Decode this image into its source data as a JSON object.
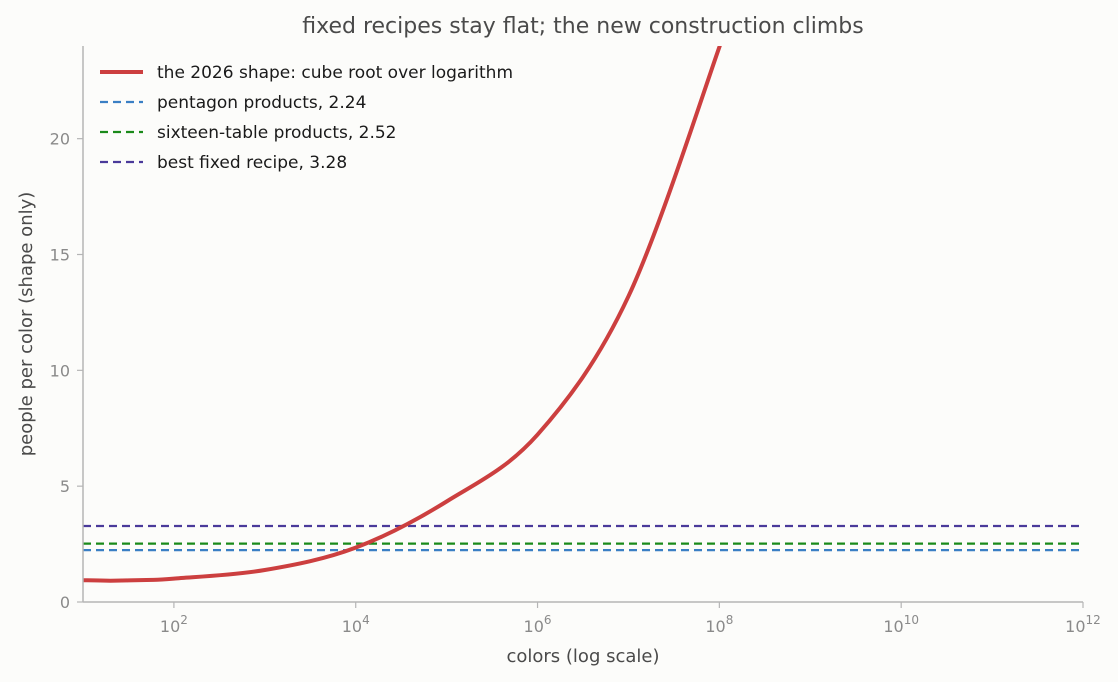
{
  "chart_data": {
    "type": "line",
    "title": "fixed recipes stay flat; the new construction climbs",
    "xlabel": "colors (log scale)",
    "ylabel": "people per color (shape only)",
    "xscale": "log",
    "xlim": [
      10,
      1000000000000
    ],
    "ylim": [
      0,
      24
    ],
    "grid": false,
    "legend_position": "top-left",
    "x_ticks": [
      {
        "value": 100,
        "base": "10",
        "exp": "2"
      },
      {
        "value": 10000,
        "base": "10",
        "exp": "4"
      },
      {
        "value": 1000000,
        "base": "10",
        "exp": "6"
      },
      {
        "value": 100000000,
        "base": "10",
        "exp": "8"
      },
      {
        "value": 10000000000,
        "base": "10",
        "exp": "10"
      },
      {
        "value": 1000000000000,
        "base": "10",
        "exp": "12"
      }
    ],
    "y_ticks": [
      {
        "value": 0,
        "label": "0"
      },
      {
        "value": 5,
        "label": "5"
      },
      {
        "value": 10,
        "label": "10"
      },
      {
        "value": 15,
        "label": "15"
      },
      {
        "value": 20,
        "label": "20"
      }
    ],
    "series": [
      {
        "name": "the 2026 shape: cube root over logarithm",
        "color": "#cc3f3f",
        "style": "solid",
        "x": [
          10,
          20,
          50,
          100,
          1000,
          10000,
          100000,
          1000000,
          10000000,
          100000000,
          130000000
        ],
        "y": [
          0.94,
          0.92,
          0.95,
          1.01,
          1.38,
          2.35,
          4.34,
          7.22,
          13.2,
          23.96,
          25.6
        ]
      },
      {
        "name": "pentagon products, 2.24",
        "color": "#3a7fc4",
        "style": "dashed",
        "x": [
          10,
          1000000000000
        ],
        "y": [
          2.24,
          2.24
        ]
      },
      {
        "name": "sixteen-table products, 2.52",
        "color": "#1a8a1a",
        "style": "dashed",
        "x": [
          10,
          1000000000000
        ],
        "y": [
          2.52,
          2.52
        ]
      },
      {
        "name": "best fixed recipe, 3.28",
        "color": "#4a3a9a",
        "style": "dashed",
        "x": [
          10,
          1000000000000
        ],
        "y": [
          3.28,
          3.28
        ]
      }
    ]
  }
}
